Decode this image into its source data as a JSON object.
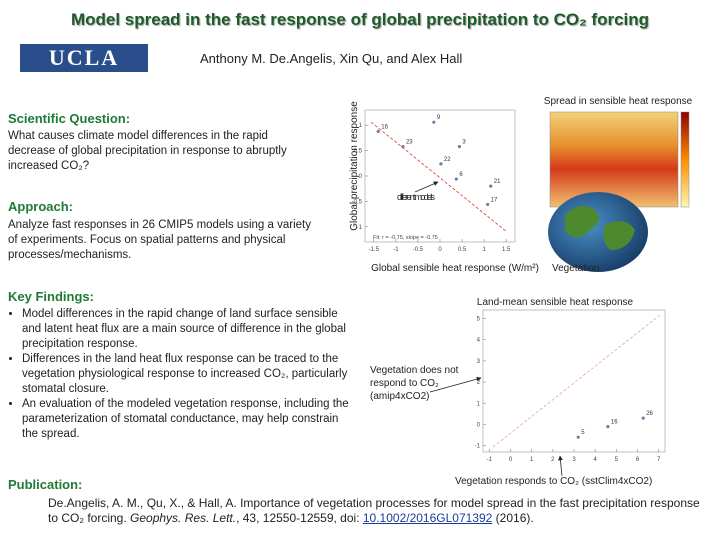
{
  "header": {
    "title": "Model spread in the fast response of global precipitation to CO₂ forcing",
    "logo": "UCLA",
    "authors": "Anthony M. De.Angelis, Xin Qu, and Alex Hall"
  },
  "question": {
    "heading": "Scientific Question:",
    "text": "What causes climate model differences in the rapid decrease of global precipitation in response to abruptly increased CO₂?"
  },
  "approach": {
    "heading": "Approach:",
    "text": "Analyze fast responses in 26 CMIP5 models using a variety of experiments.  Focus on spatial patterns and physical processes/mechanisms."
  },
  "findings": {
    "heading": "Key Findings:",
    "bullets": [
      "Model differences in the rapid change of land surface sensible and latent heat flux are a main source of difference in the global precipitation response.",
      "Differences in the land heat flux response can be traced to the vegetation physiological response to increased CO₂, particularly stomatal closure.",
      "An evaluation of the modeled vegetation response, including the parameterization of stomatal conductance, may help constrain the spread."
    ]
  },
  "map": {
    "title": "Spread in sensible heat response",
    "label": "Vegetation"
  },
  "publication": {
    "heading": "Publication:",
    "text": "De.Angelis, A. M., Qu, X., & Hall, A. Importance of vegetation processes for model spread in the fast precipitation response to CO₂ forcing. ",
    "journal": "Geophys. Res. Lett.",
    "details": ", 43, 12550-12559, doi: ",
    "doi": "10.1002/2016GL071392",
    "year": " (2016)."
  },
  "chart_data": [
    {
      "type": "scatter",
      "xlabel": "Global sensible heat response (W/m²)",
      "ylabel": "Global precipitation response",
      "annotation": "different models",
      "fit_label": "Fit: r = -0.75, slope = -0.75",
      "x": [
        -0.14,
        -1.4,
        -0.84,
        0.44,
        0.02,
        0.37,
        1.15,
        1.08
      ],
      "y": [
        1.06,
        0.88,
        0.58,
        0.58,
        0.24,
        -0.06,
        -0.2,
        -0.56
      ],
      "labels": [
        "9",
        "16",
        "23",
        "3",
        "22",
        "6",
        "21",
        "17"
      ],
      "color": "#6a7fa8",
      "xlim": [
        -1.7,
        1.7
      ],
      "ylim": [
        -1.3,
        1.3
      ],
      "xticks": [
        -1.5,
        -1,
        -0.5,
        0,
        0.5,
        1,
        1.5
      ],
      "yticks": [
        -1,
        -0.5,
        0,
        0.5,
        1
      ]
    },
    {
      "type": "scatter",
      "title": "Land-mean sensible heat response",
      "annotation_y": "Vegetation does not respond to CO₂ (amip4xCO2)",
      "annotation_x": "Vegetation responds to CO₂ (sstClim4xCO2)",
      "x": [
        6.27,
        4.6,
        3.2
      ],
      "y": [
        0.3,
        -0.1,
        -0.6
      ],
      "labels": [
        "26",
        "16",
        "5"
      ],
      "color": "#6a7fa8",
      "xlim": [
        -1.3,
        7.3
      ],
      "ylim": [
        -1.3,
        5.4
      ],
      "xticks": [
        -1,
        0,
        1,
        2,
        3,
        4,
        5,
        6,
        7
      ],
      "yticks": [
        -1,
        0,
        1,
        2,
        3,
        4,
        5
      ]
    }
  ]
}
